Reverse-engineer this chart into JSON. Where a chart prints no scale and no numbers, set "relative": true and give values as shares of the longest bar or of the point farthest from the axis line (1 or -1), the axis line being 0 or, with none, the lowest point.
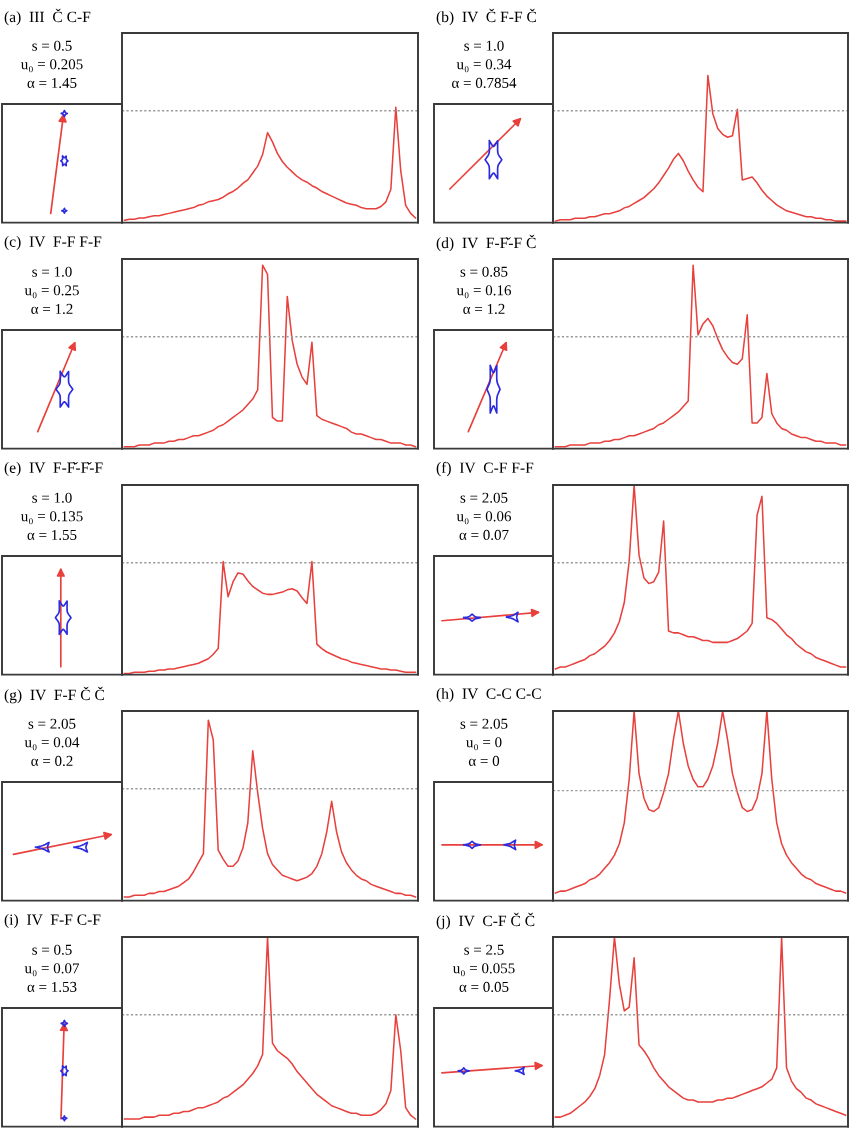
{
  "chart_data": [
    {
      "type": "line",
      "title": "(a)  III  Č C-F",
      "annotations": [
        "s = 0.5",
        "u₀ = 0.205",
        "α = 1.45"
      ],
      "relative": true,
      "categories": [
        null,
        null,
        null,
        null,
        null,
        null,
        null,
        null,
        null,
        null,
        null,
        null,
        null,
        null,
        null,
        null,
        null,
        null,
        null,
        null,
        null,
        null,
        null,
        null,
        null,
        null,
        null,
        null,
        null,
        null,
        null,
        null,
        null,
        null,
        null,
        null,
        null,
        null,
        null,
        null,
        null,
        null,
        null,
        null,
        null,
        null,
        null,
        null,
        null,
        null,
        null,
        null,
        null,
        null,
        null,
        null,
        null,
        null,
        null,
        null
      ],
      "series": [
        {
          "color": "#e8403c",
          "values": [
            0.02,
            0.03,
            0.03,
            0.04,
            0.04,
            0.05,
            0.06,
            0.06,
            0.07,
            0.08,
            0.09,
            0.1,
            0.11,
            0.12,
            0.13,
            0.15,
            0.16,
            0.18,
            0.19,
            0.2,
            0.22,
            0.25,
            0.27,
            0.3,
            0.34,
            0.37,
            0.43,
            0.49,
            0.59,
            0.78,
            0.7,
            0.6,
            0.53,
            0.48,
            0.44,
            0.4,
            0.37,
            0.35,
            0.32,
            0.3,
            0.27,
            0.25,
            0.23,
            0.21,
            0.19,
            0.17,
            0.16,
            0.15,
            0.13,
            0.12,
            0.12,
            0.12,
            0.14,
            0.18,
            0.29,
            1,
            0.45,
            0.15,
            0.08,
            0.04
          ]
        }
      ],
      "ref_lines": [
        {
          "axis": "y",
          "value": 0.97,
          "color": "#9a9a9a",
          "line_style": "dashed"
        }
      ]
    },
    {
      "type": "line",
      "title": "(b)  IV  Č F-F Č",
      "annotations": [
        "s = 1.0",
        "u₀ = 0.34",
        "α = 0.7854"
      ],
      "relative": true,
      "categories": [
        null,
        null,
        null,
        null,
        null,
        null,
        null,
        null,
        null,
        null,
        null,
        null,
        null,
        null,
        null,
        null,
        null,
        null,
        null,
        null,
        null,
        null,
        null,
        null,
        null,
        null,
        null,
        null,
        null,
        null,
        null,
        null,
        null,
        null,
        null,
        null,
        null,
        null,
        null,
        null,
        null,
        null,
        null,
        null,
        null,
        null,
        null,
        null,
        null,
        null,
        null,
        null,
        null,
        null,
        null,
        null,
        null,
        null,
        null,
        null
      ],
      "series": [
        {
          "color": "#e8403c",
          "values": [
            0.01,
            0.02,
            0.02,
            0.02,
            0.03,
            0.03,
            0.03,
            0.04,
            0.04,
            0.05,
            0.06,
            0.06,
            0.07,
            0.08,
            0.1,
            0.11,
            0.13,
            0.15,
            0.17,
            0.2,
            0.23,
            0.27,
            0.32,
            0.37,
            0.43,
            0.47,
            0.42,
            0.35,
            0.29,
            0.24,
            0.21,
            1,
            0.74,
            0.64,
            0.6,
            0.58,
            0.59,
            0.77,
            0.29,
            0.3,
            0.31,
            0.27,
            0.22,
            0.18,
            0.15,
            0.12,
            0.1,
            0.08,
            0.07,
            0.06,
            0.05,
            0.04,
            0.04,
            0.03,
            0.03,
            0.02,
            0.02,
            0.01,
            0.01,
            0.01
          ]
        }
      ],
      "ref_lines": [
        {
          "axis": "y",
          "value": 0.76,
          "color": "#9a9a9a",
          "line_style": "dashed"
        }
      ]
    },
    {
      "type": "line",
      "title": "(c)  IV  F-F F-F",
      "annotations": [
        "s = 1.0",
        "u₀ = 0.25",
        "α = 1.2"
      ],
      "relative": true,
      "categories": [
        null,
        null,
        null,
        null,
        null,
        null,
        null,
        null,
        null,
        null,
        null,
        null,
        null,
        null,
        null,
        null,
        null,
        null,
        null,
        null,
        null,
        null,
        null,
        null,
        null,
        null,
        null,
        null,
        null,
        null,
        null,
        null,
        null,
        null,
        null,
        null,
        null,
        null,
        null,
        null,
        null,
        null,
        null,
        null,
        null,
        null,
        null,
        null,
        null,
        null,
        null,
        null,
        null,
        null,
        null,
        null,
        null,
        null,
        null,
        null
      ],
      "series": [
        {
          "color": "#e8403c",
          "values": [
            0.01,
            0.01,
            0.01,
            0.02,
            0.02,
            0.02,
            0.03,
            0.03,
            0.03,
            0.04,
            0.04,
            0.05,
            0.05,
            0.06,
            0.07,
            0.07,
            0.08,
            0.09,
            0.1,
            0.12,
            0.13,
            0.15,
            0.17,
            0.19,
            0.21,
            0.24,
            0.27,
            0.32,
            1,
            0.95,
            0.17,
            0.15,
            0.15,
            0.83,
            0.59,
            0.46,
            0.39,
            0.35,
            0.58,
            0.18,
            0.16,
            0.15,
            0.14,
            0.13,
            0.12,
            0.11,
            0.09,
            0.08,
            0.08,
            0.07,
            0.06,
            0.05,
            0.05,
            0.04,
            0.03,
            0.03,
            0.03,
            0.02,
            0.02,
            0.01
          ]
        }
      ],
      "ref_lines": [
        {
          "axis": "y",
          "value": 0.61,
          "color": "#9a9a9a",
          "line_style": "dashed"
        }
      ]
    },
    {
      "type": "line",
      "title": "(d)  IV  F-F̌-F Č",
      "annotations": [
        "s = 0.85",
        "u₀ = 0.16",
        "α = 1.2"
      ],
      "relative": true,
      "categories": [
        null,
        null,
        null,
        null,
        null,
        null,
        null,
        null,
        null,
        null,
        null,
        null,
        null,
        null,
        null,
        null,
        null,
        null,
        null,
        null,
        null,
        null,
        null,
        null,
        null,
        null,
        null,
        null,
        null,
        null,
        null,
        null,
        null,
        null,
        null,
        null,
        null,
        null,
        null,
        null,
        null,
        null,
        null,
        null,
        null,
        null,
        null,
        null,
        null,
        null,
        null,
        null,
        null,
        null,
        null,
        null,
        null,
        null,
        null,
        null
      ],
      "series": [
        {
          "color": "#e8403c",
          "values": [
            0.01,
            0.01,
            0.01,
            0.02,
            0.02,
            0.02,
            0.02,
            0.03,
            0.03,
            0.03,
            0.04,
            0.04,
            0.05,
            0.05,
            0.06,
            0.07,
            0.07,
            0.08,
            0.09,
            0.1,
            0.11,
            0.13,
            0.14,
            0.16,
            0.18,
            0.2,
            0.23,
            0.26,
            1,
            0.62,
            0.68,
            0.71,
            0.67,
            0.6,
            0.54,
            0.5,
            0.47,
            0.46,
            0.49,
            0.73,
            0.14,
            0.14,
            0.17,
            0.41,
            0.19,
            0.14,
            0.11,
            0.1,
            0.08,
            0.07,
            0.06,
            0.06,
            0.05,
            0.04,
            0.04,
            0.03,
            0.03,
            0.03,
            0.02,
            0.02
          ]
        }
      ],
      "ref_lines": [
        {
          "axis": "y",
          "value": 0.61,
          "color": "#9a9a9a",
          "line_style": "dashed"
        }
      ]
    },
    {
      "type": "line",
      "title": "(e)  IV  F-F̌-F̌-F",
      "annotations": [
        "s = 1.0",
        "u₀ = 0.135",
        "α = 1.55"
      ],
      "relative": true,
      "categories": [
        null,
        null,
        null,
        null,
        null,
        null,
        null,
        null,
        null,
        null,
        null,
        null,
        null,
        null,
        null,
        null,
        null,
        null,
        null,
        null,
        null,
        null,
        null,
        null,
        null,
        null,
        null,
        null,
        null,
        null,
        null,
        null,
        null,
        null,
        null,
        null,
        null,
        null,
        null,
        null,
        null,
        null,
        null,
        null,
        null,
        null,
        null,
        null,
        null,
        null,
        null,
        null,
        null,
        null,
        null,
        null,
        null,
        null,
        null,
        null
      ],
      "series": [
        {
          "color": "#e8403c",
          "values": [
            0.01,
            0.01,
            0.02,
            0.02,
            0.02,
            0.03,
            0.03,
            0.04,
            0.04,
            0.05,
            0.05,
            0.06,
            0.07,
            0.08,
            0.09,
            0.1,
            0.12,
            0.14,
            0.18,
            0.23,
            1,
            0.69,
            0.82,
            0.9,
            0.89,
            0.83,
            0.78,
            0.75,
            0.72,
            0.71,
            0.71,
            0.72,
            0.73,
            0.75,
            0.76,
            0.74,
            0.68,
            0.63,
            1,
            0.27,
            0.23,
            0.2,
            0.18,
            0.16,
            0.14,
            0.13,
            0.11,
            0.1,
            0.09,
            0.08,
            0.07,
            0.06,
            0.05,
            0.05,
            0.04,
            0.04,
            0.03,
            0.02,
            0.02,
            0.02
          ]
        }
      ],
      "ref_lines": [
        {
          "axis": "y",
          "value": 0.99,
          "color": "#9a9a9a",
          "line_style": "dashed"
        }
      ]
    },
    {
      "type": "line",
      "title": "(f)  IV  C-F F-F",
      "annotations": [
        "s = 2.05",
        "u₀ = 0.06",
        "α = 0.07"
      ],
      "relative": true,
      "categories": [
        null,
        null,
        null,
        null,
        null,
        null,
        null,
        null,
        null,
        null,
        null,
        null,
        null,
        null,
        null,
        null,
        null,
        null,
        null,
        null,
        null,
        null,
        null,
        null,
        null,
        null,
        null,
        null,
        null,
        null,
        null,
        null,
        null,
        null,
        null,
        null,
        null,
        null,
        null,
        null,
        null,
        null,
        null,
        null,
        null,
        null,
        null,
        null,
        null,
        null,
        null,
        null,
        null,
        null,
        null,
        null,
        null,
        null,
        null,
        null
      ],
      "series": [
        {
          "color": "#e8403c",
          "values": [
            0.03,
            0.04,
            0.04,
            0.05,
            0.06,
            0.07,
            0.08,
            0.1,
            0.11,
            0.13,
            0.15,
            0.18,
            0.22,
            0.28,
            0.38,
            0.6,
            1,
            0.63,
            0.51,
            0.48,
            0.49,
            0.54,
            0.81,
            0.23,
            0.22,
            0.22,
            0.21,
            0.2,
            0.2,
            0.19,
            0.18,
            0.18,
            0.17,
            0.17,
            0.17,
            0.17,
            0.18,
            0.19,
            0.21,
            0.23,
            0.27,
            0.84,
            0.94,
            0.3,
            0.29,
            0.27,
            0.24,
            0.21,
            0.19,
            0.16,
            0.14,
            0.12,
            0.11,
            0.09,
            0.08,
            0.07,
            0.06,
            0.05,
            0.04,
            0.04
          ]
        }
      ],
      "ref_lines": [
        {
          "axis": "y",
          "value": 0.59,
          "color": "#9a9a9a",
          "line_style": "dashed"
        }
      ]
    },
    {
      "type": "line",
      "title": "(g)  IV  F-F Č Č",
      "annotations": [
        "s = 2.05",
        "u₀ = 0.04",
        "α = 0.2"
      ],
      "relative": true,
      "categories": [
        null,
        null,
        null,
        null,
        null,
        null,
        null,
        null,
        null,
        null,
        null,
        null,
        null,
        null,
        null,
        null,
        null,
        null,
        null,
        null,
        null,
        null,
        null,
        null,
        null,
        null,
        null,
        null,
        null,
        null,
        null,
        null,
        null,
        null,
        null,
        null,
        null,
        null,
        null,
        null,
        null,
        null,
        null,
        null,
        null,
        null,
        null,
        null,
        null,
        null,
        null,
        null,
        null,
        null,
        null,
        null,
        null,
        null,
        null,
        null
      ],
      "series": [
        {
          "color": "#e8403c",
          "values": [
            0.02,
            0.02,
            0.03,
            0.03,
            0.03,
            0.04,
            0.04,
            0.05,
            0.05,
            0.06,
            0.07,
            0.08,
            0.1,
            0.12,
            0.16,
            0.21,
            0.26,
            1,
            0.89,
            0.28,
            0.23,
            0.19,
            0.19,
            0.22,
            0.29,
            0.43,
            0.83,
            0.6,
            0.4,
            0.26,
            0.2,
            0.17,
            0.14,
            0.13,
            0.12,
            0.11,
            0.12,
            0.13,
            0.15,
            0.19,
            0.26,
            0.38,
            0.55,
            0.38,
            0.27,
            0.21,
            0.17,
            0.14,
            0.12,
            0.11,
            0.09,
            0.08,
            0.07,
            0.06,
            0.05,
            0.04,
            0.04,
            0.03,
            0.03,
            0.02
          ]
        }
      ],
      "ref_lines": [
        {
          "axis": "y",
          "value": 0.62,
          "color": "#9a9a9a",
          "line_style": "dashed"
        }
      ]
    },
    {
      "type": "line",
      "title": "(h)  IV  C-C C-C",
      "annotations": [
        "s = 2.05",
        "u₀ = 0",
        "α = 0"
      ],
      "relative": true,
      "categories": [
        null,
        null,
        null,
        null,
        null,
        null,
        null,
        null,
        null,
        null,
        null,
        null,
        null,
        null,
        null,
        null,
        null,
        null,
        null,
        null,
        null,
        null,
        null,
        null,
        null,
        null,
        null,
        null,
        null,
        null,
        null,
        null,
        null,
        null,
        null,
        null,
        null,
        null,
        null,
        null,
        null,
        null,
        null,
        null,
        null,
        null,
        null,
        null,
        null,
        null,
        null,
        null,
        null,
        null,
        null,
        null,
        null,
        null,
        null,
        null
      ],
      "series": [
        {
          "color": "#e8403c",
          "values": [
            0.04,
            0.05,
            0.05,
            0.06,
            0.07,
            0.08,
            0.09,
            0.11,
            0.12,
            0.14,
            0.17,
            0.2,
            0.24,
            0.3,
            0.41,
            0.64,
            1,
            0.67,
            0.54,
            0.48,
            0.47,
            0.49,
            0.57,
            0.67,
            0.85,
            1,
            0.83,
            0.71,
            0.64,
            0.6,
            0.6,
            0.64,
            0.71,
            0.83,
            1,
            0.85,
            0.67,
            0.57,
            0.49,
            0.47,
            0.48,
            0.54,
            0.67,
            1,
            0.64,
            0.41,
            0.3,
            0.24,
            0.2,
            0.17,
            0.14,
            0.12,
            0.11,
            0.09,
            0.08,
            0.07,
            0.06,
            0.05,
            0.05,
            0.04
          ]
        }
      ],
      "ref_lines": [
        {
          "axis": "y",
          "value": 0.58,
          "color": "#9a9a9a",
          "line_style": "dashed"
        }
      ]
    },
    {
      "type": "line",
      "title": "(i)  IV  F-F C-F",
      "annotations": [
        "s = 0.5",
        "u₀ = 0.07",
        "α = 1.53"
      ],
      "relative": true,
      "categories": [
        null,
        null,
        null,
        null,
        null,
        null,
        null,
        null,
        null,
        null,
        null,
        null,
        null,
        null,
        null,
        null,
        null,
        null,
        null,
        null,
        null,
        null,
        null,
        null,
        null,
        null,
        null,
        null,
        null,
        null,
        null,
        null,
        null,
        null,
        null,
        null,
        null,
        null,
        null,
        null,
        null,
        null,
        null,
        null,
        null,
        null,
        null,
        null,
        null,
        null,
        null,
        null,
        null,
        null,
        null,
        null,
        null,
        null,
        null,
        null
      ],
      "series": [
        {
          "color": "#e8403c",
          "values": [
            0.04,
            0.04,
            0.04,
            0.04,
            0.05,
            0.05,
            0.05,
            0.06,
            0.06,
            0.06,
            0.07,
            0.07,
            0.08,
            0.08,
            0.09,
            0.1,
            0.1,
            0.11,
            0.12,
            0.13,
            0.15,
            0.16,
            0.18,
            0.2,
            0.22,
            0.25,
            0.28,
            0.32,
            0.38,
            1,
            0.44,
            0.4,
            0.38,
            0.36,
            0.33,
            0.29,
            0.26,
            0.23,
            0.2,
            0.17,
            0.15,
            0.13,
            0.11,
            0.1,
            0.09,
            0.08,
            0.07,
            0.07,
            0.06,
            0.06,
            0.06,
            0.07,
            0.09,
            0.12,
            0.19,
            0.59,
            0.4,
            0.1,
            0.06,
            0.04
          ]
        }
      ],
      "ref_lines": [
        {
          "axis": "y",
          "value": 0.59,
          "color": "#9a9a9a",
          "line_style": "dashed"
        }
      ]
    },
    {
      "type": "line",
      "title": "(j)  IV  C-F Č Č",
      "annotations": [
        "s = 2.5",
        "u₀ = 0.055",
        "α = 0.05"
      ],
      "relative": true,
      "categories": [
        null,
        null,
        null,
        null,
        null,
        null,
        null,
        null,
        null,
        null,
        null,
        null,
        null,
        null,
        null,
        null,
        null,
        null,
        null,
        null,
        null,
        null,
        null,
        null,
        null,
        null,
        null,
        null,
        null,
        null,
        null,
        null,
        null,
        null,
        null,
        null,
        null,
        null,
        null,
        null,
        null,
        null,
        null,
        null,
        null,
        null,
        null,
        null,
        null,
        null,
        null,
        null,
        null,
        null,
        null,
        null,
        null,
        null,
        null,
        null
      ],
      "series": [
        {
          "color": "#e8403c",
          "values": [
            0.05,
            0.05,
            0.06,
            0.07,
            0.09,
            0.11,
            0.13,
            0.16,
            0.2,
            0.27,
            0.38,
            0.67,
            1,
            0.75,
            0.61,
            0.63,
            0.89,
            0.43,
            0.4,
            0.36,
            0.31,
            0.27,
            0.24,
            0.21,
            0.19,
            0.17,
            0.15,
            0.14,
            0.14,
            0.13,
            0.13,
            0.13,
            0.13,
            0.14,
            0.14,
            0.15,
            0.15,
            0.16,
            0.17,
            0.18,
            0.19,
            0.2,
            0.21,
            0.23,
            0.25,
            0.31,
            1,
            0.31,
            0.24,
            0.2,
            0.18,
            0.15,
            0.14,
            0.12,
            0.11,
            0.1,
            0.09,
            0.08,
            0.07,
            0.06
          ]
        }
      ],
      "ref_lines": [
        {
          "axis": "y",
          "value": 0.59,
          "color": "#9a9a9a",
          "line_style": "dashed"
        }
      ]
    }
  ]
}
